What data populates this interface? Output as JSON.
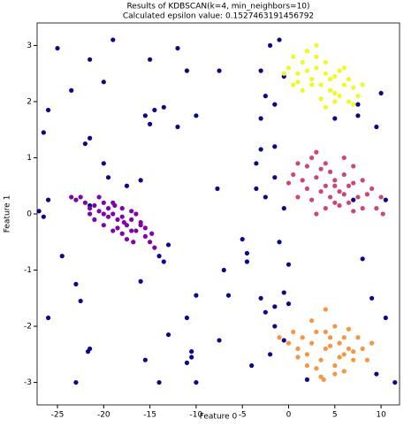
{
  "chart_data": {
    "type": "scatter",
    "title": "Results of KDBSCAN(k=4, min_neighbors=10)",
    "subtitle": "Calculated epsilon value: 0.1527463191456792",
    "x_label": "Feature 0",
    "y_label": "Feature 1",
    "xlim": [
      -27.2,
      12.0
    ],
    "ylim": [
      -3.4,
      3.4
    ],
    "xticks": [
      -25,
      -20,
      -15,
      -10,
      -5,
      0,
      5,
      10
    ],
    "yticks": [
      -3,
      -2,
      -1,
      0,
      1,
      2,
      3
    ],
    "grid": false,
    "series": [
      {
        "color": "#0d0887",
        "x": [
          -25,
          -21.5,
          -19,
          -20,
          -23.5,
          -26,
          -26.5,
          -22,
          -21.5,
          -15,
          -12,
          -11,
          -7.5,
          -13.5,
          -14.5,
          -15.5,
          -15,
          -12,
          -10,
          -20,
          -19.5,
          -16,
          -17.5,
          -21.5,
          -26,
          -27,
          -24.5,
          -26.5,
          -13,
          -14,
          -13.5,
          -16,
          -23,
          -22.5,
          -26,
          -10,
          -11,
          -13,
          -21.5,
          -21.7,
          -15.5,
          -10.5,
          -10.5,
          -11,
          -14,
          -23,
          -10,
          -1,
          -2,
          -3,
          -2.5,
          -0.5,
          -1.5,
          -3,
          -3,
          -3.5,
          -3.5,
          -1.5,
          -1.5,
          -2.5,
          -0.5,
          -1,
          0,
          -0.5,
          -3,
          -1.5,
          -2.5,
          -1.5,
          0,
          -0.5,
          -2,
          2,
          9.5,
          10,
          7.5,
          7.5,
          5,
          7,
          8,
          9,
          10.5,
          9.5,
          11.5,
          10.5,
          -6.5,
          -7,
          -4.5,
          -4.5,
          -7.5,
          -4,
          -7.7,
          -5
        ],
        "y": [
          2.95,
          2.75,
          3.1,
          2.35,
          2.2,
          1.85,
          1.45,
          1.25,
          1.35,
          2.75,
          2.95,
          2.55,
          2.55,
          1.9,
          1.85,
          1.75,
          1.6,
          1.55,
          1.75,
          0.9,
          0.65,
          0.6,
          0.5,
          0.15,
          0.25,
          0.05,
          -0.75,
          -0.05,
          -0.55,
          -0.75,
          -0.85,
          -1.2,
          -1.25,
          -1.55,
          -1.85,
          -1.45,
          -1.85,
          -2.15,
          -2.4,
          -2.45,
          -2.6,
          -2.45,
          -2.55,
          -2.65,
          -3.0,
          -3.0,
          -3.0,
          3.1,
          3.0,
          2.55,
          2.1,
          2.45,
          1.95,
          1.7,
          1.15,
          0.9,
          0.45,
          1.2,
          0.65,
          0.3,
          0.1,
          -0.5,
          -0.9,
          -1.4,
          -1.5,
          -1.65,
          -1.75,
          -2.0,
          -1.6,
          -2.25,
          -2.5,
          -2.95,
          1.55,
          2.15,
          1.95,
          1.75,
          1.7,
          0.25,
          -0.8,
          -1.5,
          -1.85,
          -2.85,
          -3.0,
          0.25,
          -1.45,
          -1.0,
          -0.7,
          -0.85,
          -2.25,
          -2.7,
          0.45,
          -0.45
        ]
      },
      {
        "color": "#7e03a8",
        "x": [
          -23,
          -22,
          -21.5,
          -21,
          -20.5,
          -20,
          -19.5,
          -19,
          -18.5,
          -18,
          -17.5,
          -17,
          -16.5,
          -16,
          -15.5,
          -15,
          -22.5,
          -21,
          -20,
          -19,
          -18,
          -17,
          -16,
          -15.5,
          -20.5,
          -19.5,
          -18.5,
          -17.5,
          -16.5,
          -21.5,
          -19,
          -18,
          -17,
          -14.5,
          -14.8,
          -23.5,
          -20,
          -18.8,
          -17.8,
          -16.8
        ],
        "y": [
          0.25,
          0.2,
          0.1,
          0.15,
          0.3,
          0.0,
          -0.05,
          0.2,
          -0.1,
          0.1,
          -0.2,
          -0.1,
          -0.3,
          -0.15,
          -0.4,
          -0.5,
          0.3,
          -0.1,
          -0.2,
          -0.3,
          -0.05,
          0.05,
          -0.2,
          -0.25,
          0.05,
          0.1,
          -0.25,
          -0.45,
          0.0,
          0.0,
          0.0,
          -0.35,
          -0.3,
          -0.6,
          -0.35,
          0.3,
          0.2,
          0.15,
          -0.15,
          -0.5
        ]
      },
      {
        "color": "#cc4778",
        "x": [
          0,
          0.5,
          1,
          1.5,
          2,
          2.5,
          3,
          3.5,
          4,
          4.5,
          5,
          5.5,
          6,
          6.5,
          7,
          7.5,
          8,
          8.5,
          9,
          9.5,
          10,
          1,
          2,
          3,
          4,
          5,
          6,
          7,
          8,
          2.5,
          3.5,
          4.5,
          5.5,
          6.5,
          3,
          4,
          5,
          6,
          7,
          10.2
        ],
        "y": [
          0.55,
          0.7,
          0.9,
          0.6,
          0.85,
          1.0,
          0.65,
          0.8,
          0.5,
          0.3,
          0.6,
          0.4,
          0.7,
          0.2,
          0.55,
          0.3,
          0.6,
          0.35,
          0.45,
          0.1,
          0.3,
          0.3,
          0.45,
          1.1,
          0.9,
          0.2,
          1.0,
          0.85,
          0.1,
          0.25,
          0.4,
          0.75,
          0.15,
          0.5,
          0.0,
          0.1,
          0.5,
          0.35,
          0.05,
          0.0
        ]
      },
      {
        "color": "#f0f921",
        "x": [
          -0.5,
          0,
          0.5,
          1,
          1.5,
          2,
          2.5,
          3,
          3.5,
          4,
          4.5,
          5,
          5.5,
          6,
          6.5,
          7,
          7.5,
          1,
          2,
          3,
          4,
          5,
          6,
          7,
          1.5,
          2.5,
          3.5,
          4.5,
          5.5,
          0.5,
          6.5,
          3,
          4,
          5,
          8,
          2
        ],
        "y": [
          2.5,
          2.6,
          2.8,
          2.5,
          2.7,
          2.9,
          2.4,
          2.6,
          2.3,
          2.5,
          2.2,
          2.45,
          2.1,
          2.3,
          2.0,
          2.25,
          2.1,
          2.35,
          2.55,
          2.8,
          2.7,
          2.0,
          2.6,
          1.95,
          2.2,
          2.3,
          2.05,
          2.4,
          2.55,
          2.3,
          2.4,
          3.0,
          1.9,
          2.15,
          2.3,
          2.9
        ]
      },
      {
        "color": "#f89540",
        "x": [
          -1,
          0,
          0.5,
          1,
          1.5,
          2,
          2.5,
          3,
          3.5,
          4,
          4.5,
          5,
          5.5,
          6,
          6.5,
          7,
          7.5,
          8,
          8.5,
          9,
          2,
          3,
          4,
          5,
          6,
          7,
          1,
          3.5,
          4.5,
          5.5,
          6.5,
          2.5,
          4,
          5,
          6,
          3.8
        ],
        "y": [
          -2.2,
          -2.3,
          -2.1,
          -2.4,
          -2.2,
          -2.5,
          -2.3,
          -2.1,
          -2.6,
          -2.4,
          -2.2,
          -2.7,
          -2.3,
          -2.5,
          -2.4,
          -2.6,
          -2.2,
          -2.4,
          -2.6,
          -2.3,
          -2.7,
          -2.75,
          -2.1,
          -2.0,
          -2.8,
          -2.45,
          -2.55,
          -2.9,
          -2.35,
          -2.55,
          -2.05,
          -1.9,
          -1.7,
          -2.85,
          -2.2,
          -2.95
        ]
      }
    ]
  }
}
